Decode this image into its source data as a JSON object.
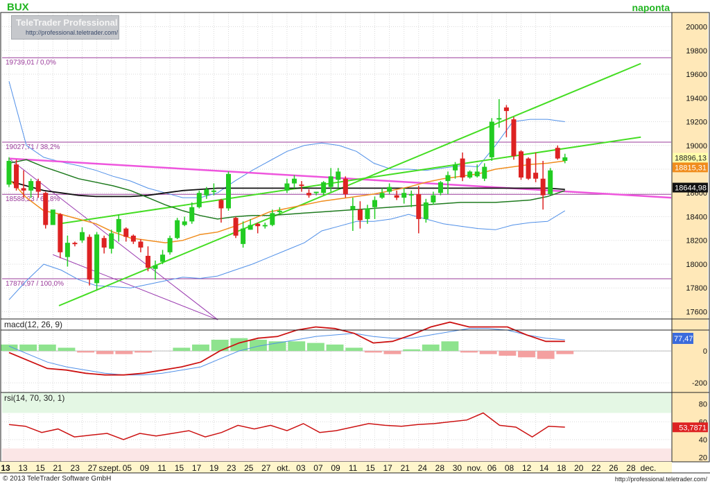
{
  "header": {
    "symbol": "BUX",
    "period": "naponta",
    "logo_name": "TeleTrader Professional",
    "logo_url": "http://professional.teletrader.com/"
  },
  "footer": {
    "copyright": "© 2013 TeleTrader Software GmbH",
    "site": "http://professional.teletrader.com/"
  },
  "colors": {
    "up": "#22cc22",
    "down": "#dd2222",
    "bollinger": "#4f8fe8",
    "sma_slow": "#111111",
    "sma_mid": "#1e7a1e",
    "sma_fast": "#f08c1c",
    "trend_green": "#44dd22",
    "trend_pink": "#ee55dd",
    "fib": "#9a3a9a",
    "axis_bg": "#ffe8b8"
  },
  "chart_data": [
    {
      "type": "candlestick",
      "title": "BUX",
      "ylim": [
        17550,
        20120
      ],
      "y_ticks": [
        17600,
        17800,
        18000,
        18200,
        18400,
        18600,
        18800,
        19000,
        19200,
        19400,
        19600,
        19800,
        20000
      ],
      "x_tick_labels": [
        "13",
        "13",
        "15",
        "21",
        "23",
        "27",
        "szept.",
        "05",
        "09",
        "11",
        "15",
        "17",
        "19",
        "23",
        "25",
        "27",
        "okt.",
        "03",
        "07",
        "09",
        "11",
        "15",
        "17",
        "21",
        "24",
        "28",
        "30",
        "nov.",
        "06",
        "08",
        "12",
        "14",
        "18",
        "20",
        "22",
        "26",
        "28",
        "dec."
      ],
      "grid": true,
      "candles": [
        {
          "o": 18670,
          "h": 18900,
          "l": 18650,
          "c": 18870
        },
        {
          "o": 18840,
          "h": 18880,
          "l": 18620,
          "c": 18640
        },
        {
          "o": 18640,
          "h": 18790,
          "l": 18560,
          "c": 18620
        },
        {
          "o": 18620,
          "h": 18720,
          "l": 18560,
          "c": 18700
        },
        {
          "o": 18700,
          "h": 18720,
          "l": 18560,
          "c": 18610
        },
        {
          "o": 18600,
          "h": 18610,
          "l": 18300,
          "c": 18330
        },
        {
          "o": 18330,
          "h": 18450,
          "l": 18350,
          "c": 18460
        },
        {
          "o": 18420,
          "h": 18430,
          "l": 18050,
          "c": 18100
        },
        {
          "o": 18060,
          "h": 18240,
          "l": 17980,
          "c": 18180
        },
        {
          "o": 18180,
          "h": 18190,
          "l": 18150,
          "c": 18170
        },
        {
          "o": 18200,
          "h": 18310,
          "l": 18180,
          "c": 18270
        },
        {
          "o": 18230,
          "h": 18250,
          "l": 17820,
          "c": 17870
        },
        {
          "o": 17840,
          "h": 18270,
          "l": 17780,
          "c": 18250
        },
        {
          "o": 18220,
          "h": 18240,
          "l": 18090,
          "c": 18140
        },
        {
          "o": 18130,
          "h": 18290,
          "l": 18090,
          "c": 18260
        },
        {
          "o": 18270,
          "h": 18420,
          "l": 18190,
          "c": 18380
        },
        {
          "o": 18300,
          "h": 18310,
          "l": 18190,
          "c": 18230
        },
        {
          "o": 18240,
          "h": 18250,
          "l": 18170,
          "c": 18190
        },
        {
          "o": 18190,
          "h": 18210,
          "l": 18100,
          "c": 18140
        },
        {
          "o": 18070,
          "h": 18150,
          "l": 17940,
          "c": 17970
        },
        {
          "o": 17960,
          "h": 18030,
          "l": 17870,
          "c": 17990
        },
        {
          "o": 18020,
          "h": 18120,
          "l": 18000,
          "c": 18080
        },
        {
          "o": 18100,
          "h": 18240,
          "l": 18080,
          "c": 18220
        },
        {
          "o": 18220,
          "h": 18390,
          "l": 18210,
          "c": 18370
        },
        {
          "o": 18330,
          "h": 18400,
          "l": 18320,
          "c": 18360
        },
        {
          "o": 18360,
          "h": 18520,
          "l": 18340,
          "c": 18480
        },
        {
          "o": 18480,
          "h": 18620,
          "l": 18470,
          "c": 18600
        },
        {
          "o": 18580,
          "h": 18650,
          "l": 18550,
          "c": 18630
        },
        {
          "o": 18610,
          "h": 18680,
          "l": 18580,
          "c": 18620
        },
        {
          "o": 18540,
          "h": 18550,
          "l": 18350,
          "c": 18470
        },
        {
          "o": 18470,
          "h": 18780,
          "l": 18450,
          "c": 18760
        },
        {
          "o": 18390,
          "h": 18400,
          "l": 18220,
          "c": 18240
        },
        {
          "o": 18170,
          "h": 18360,
          "l": 18140,
          "c": 18300
        },
        {
          "o": 18290,
          "h": 18380,
          "l": 18290,
          "c": 18330
        },
        {
          "o": 18340,
          "h": 18350,
          "l": 18260,
          "c": 18320
        },
        {
          "o": 18320,
          "h": 18350,
          "l": 18300,
          "c": 18330
        },
        {
          "o": 18330,
          "h": 18460,
          "l": 18320,
          "c": 18430
        },
        {
          "o": 18440,
          "h": 18480,
          "l": 18420,
          "c": 18450
        },
        {
          "o": 18620,
          "h": 18720,
          "l": 18600,
          "c": 18680
        },
        {
          "o": 18680,
          "h": 18750,
          "l": 18640,
          "c": 18720
        },
        {
          "o": 18670,
          "h": 18700,
          "l": 18610,
          "c": 18660
        },
        {
          "o": 18600,
          "h": 18630,
          "l": 18560,
          "c": 18580
        },
        {
          "o": 18600,
          "h": 18610,
          "l": 18580,
          "c": 18610
        },
        {
          "o": 18600,
          "h": 18700,
          "l": 18580,
          "c": 18690
        },
        {
          "o": 18650,
          "h": 18810,
          "l": 18610,
          "c": 18740
        },
        {
          "o": 18710,
          "h": 18810,
          "l": 18640,
          "c": 18780
        },
        {
          "o": 18720,
          "h": 18740,
          "l": 18560,
          "c": 18590
        },
        {
          "o": 18460,
          "h": 18560,
          "l": 18280,
          "c": 18490
        },
        {
          "o": 18460,
          "h": 18530,
          "l": 18300,
          "c": 18370
        },
        {
          "o": 18380,
          "h": 18500,
          "l": 18340,
          "c": 18470
        },
        {
          "o": 18480,
          "h": 18570,
          "l": 18380,
          "c": 18540
        },
        {
          "o": 18560,
          "h": 18640,
          "l": 18550,
          "c": 18600
        },
        {
          "o": 18610,
          "h": 18680,
          "l": 18590,
          "c": 18650
        },
        {
          "o": 18580,
          "h": 18620,
          "l": 18540,
          "c": 18560
        },
        {
          "o": 18560,
          "h": 18640,
          "l": 18510,
          "c": 18600
        },
        {
          "o": 18590,
          "h": 18620,
          "l": 18480,
          "c": 18590
        },
        {
          "o": 18590,
          "h": 18660,
          "l": 18260,
          "c": 18380
        },
        {
          "o": 18380,
          "h": 18550,
          "l": 18350,
          "c": 18520
        },
        {
          "o": 18520,
          "h": 18610,
          "l": 18500,
          "c": 18580
        },
        {
          "o": 18600,
          "h": 18700,
          "l": 18580,
          "c": 18690
        },
        {
          "o": 18700,
          "h": 18780,
          "l": 18590,
          "c": 18750
        },
        {
          "o": 18790,
          "h": 18860,
          "l": 18720,
          "c": 18840
        },
        {
          "o": 18890,
          "h": 18940,
          "l": 18700,
          "c": 18730
        },
        {
          "o": 18730,
          "h": 18790,
          "l": 18720,
          "c": 18780
        },
        {
          "o": 18740,
          "h": 18840,
          "l": 18730,
          "c": 18780
        },
        {
          "o": 18720,
          "h": 18850,
          "l": 18700,
          "c": 18820
        },
        {
          "o": 18900,
          "h": 19230,
          "l": 18870,
          "c": 19200
        },
        {
          "o": 19220,
          "h": 19390,
          "l": 19150,
          "c": 19230
        },
        {
          "o": 19320,
          "h": 19340,
          "l": 19070,
          "c": 19290
        },
        {
          "o": 19220,
          "h": 19240,
          "l": 18880,
          "c": 18910
        },
        {
          "o": 18950,
          "h": 18960,
          "l": 18710,
          "c": 18730
        },
        {
          "o": 18890,
          "h": 18900,
          "l": 18710,
          "c": 18720
        },
        {
          "o": 18770,
          "h": 18940,
          "l": 18690,
          "c": 18720
        },
        {
          "o": 18720,
          "h": 18870,
          "l": 18460,
          "c": 18580
        },
        {
          "o": 18590,
          "h": 18810,
          "l": 18580,
          "c": 18790
        },
        {
          "o": 18980,
          "h": 19000,
          "l": 18880,
          "c": 18890
        },
        {
          "o": 18870,
          "h": 18930,
          "l": 18850,
          "c": 18900
        }
      ],
      "bollinger_upper": [
        19540,
        19000,
        18900,
        18860,
        18830,
        18790,
        18740,
        18700,
        18640,
        18600,
        18560,
        18560,
        18600,
        18700,
        18790,
        18870,
        18950,
        19000,
        19020,
        19000,
        18950,
        18850,
        18800,
        18800,
        18790,
        18810,
        18830,
        18820,
        19000,
        19200,
        19220,
        19220,
        19200
      ],
      "bollinger_lower": [
        17700,
        17860,
        18000,
        17950,
        17870,
        17820,
        17810,
        17800,
        17830,
        17860,
        17890,
        17880,
        17900,
        17950,
        18000,
        18060,
        18120,
        18180,
        18280,
        18320,
        18360,
        18360,
        18380,
        18420,
        18380,
        18340,
        18320,
        18300,
        18290,
        18330,
        18350,
        18360,
        18450
      ],
      "sma_slow": [
        18700,
        18660,
        18620,
        18600,
        18580,
        18570,
        18570,
        18570,
        18580,
        18600,
        18620,
        18630,
        18640,
        18640,
        18640,
        18640,
        18640,
        18640,
        18640,
        18640,
        18640,
        18640,
        18640,
        18640,
        18640,
        18640,
        18640,
        18640,
        18640,
        18640,
        18640,
        18640,
        18630
      ],
      "sma_mid": [
        18850,
        18880,
        18820,
        18770,
        18720,
        18690,
        18660,
        18620,
        18560,
        18500,
        18450,
        18410,
        18380,
        18400,
        18410,
        18410,
        18420,
        18430,
        18440,
        18450,
        18460,
        18470,
        18480,
        18490,
        18500,
        18510,
        18520,
        18520,
        18520,
        18530,
        18540,
        18570,
        18620
      ],
      "sma_fast": [
        18720,
        18560,
        18450,
        18420,
        18380,
        18340,
        18270,
        18220,
        18200,
        18180,
        18200,
        18250,
        18270,
        18320,
        18380,
        18440,
        18470,
        18500,
        18530,
        18550,
        18570,
        18590,
        18620,
        18650,
        18690,
        18720,
        18740,
        18760,
        18800,
        18820,
        18840,
        18850,
        18870
      ],
      "trend_channel": [
        [
          0,
          17650,
          75,
          19690
        ],
        [
          0,
          18340,
          75,
          19070
        ]
      ],
      "pink_trend": [
        0,
        18890,
        63,
        18560
      ],
      "purple_lines": [
        [
          0,
          18890,
          24,
          17660
        ],
        [
          6,
          18080,
          24,
          17660
        ]
      ],
      "fib_levels": [
        {
          "label": "19739,01 / 0,0%",
          "value": 19739.01
        },
        {
          "label": "19027,71 / 38,2%",
          "value": 19027.71
        },
        {
          "label": "18588,23 / 61,8%",
          "value": 18588.23
        },
        {
          "label": "17876,97 / 100,0%",
          "value": 17876.97
        }
      ],
      "price_tags": [
        {
          "label": "18896,13",
          "value": 18896.13,
          "bg": "#ffffaa",
          "fg": "#222222"
        },
        {
          "label": "18815,31",
          "value": 18815.31,
          "bg": "#f08c1c",
          "fg": "#ffffff"
        },
        {
          "label": "18644,98",
          "value": 18644.98,
          "bg": "#111111",
          "fg": "#ffffff"
        }
      ]
    },
    {
      "type": "line",
      "title": "macd(12, 26, 9)",
      "ylim": [
        -260,
        200
      ],
      "y_ticks": [
        -200,
        0
      ],
      "macd": [
        -10,
        -60,
        -110,
        -120,
        -140,
        -150,
        -150,
        -140,
        -120,
        -100,
        -70,
        0,
        50,
        80,
        90,
        130,
        150,
        140,
        110,
        50,
        60,
        100,
        150,
        180,
        150,
        150,
        150,
        100,
        60,
        60
      ],
      "signal": [
        30,
        -20,
        -70,
        -100,
        -120,
        -140,
        -150,
        -150,
        -140,
        -120,
        -100,
        -50,
        0,
        30,
        50,
        70,
        90,
        100,
        110,
        90,
        80,
        80,
        100,
        120,
        140,
        140,
        130,
        100,
        80,
        70
      ],
      "histogram": [
        40,
        40,
        40,
        20,
        -10,
        -20,
        -20,
        -10,
        0,
        20,
        40,
        70,
        80,
        70,
        60,
        60,
        50,
        40,
        20,
        -10,
        -20,
        10,
        40,
        60,
        -10,
        -20,
        -30,
        -40,
        -50,
        -20
      ],
      "value_tag": "77,47"
    },
    {
      "type": "line",
      "title": "rsi(14, 70, 30, 1)",
      "ylim": [
        15,
        93
      ],
      "y_ticks": [
        20,
        40,
        60,
        80
      ],
      "upper_band": 70,
      "lower_band": 30,
      "rsi": [
        57,
        55,
        48,
        52,
        43,
        45,
        47,
        40,
        47,
        44,
        47,
        50,
        43,
        48,
        56,
        52,
        56,
        50,
        58,
        48,
        50,
        54,
        58,
        56,
        55,
        57,
        58,
        60,
        62,
        70,
        56,
        54,
        43,
        55,
        54
      ],
      "value_tag": "53,7871"
    }
  ]
}
